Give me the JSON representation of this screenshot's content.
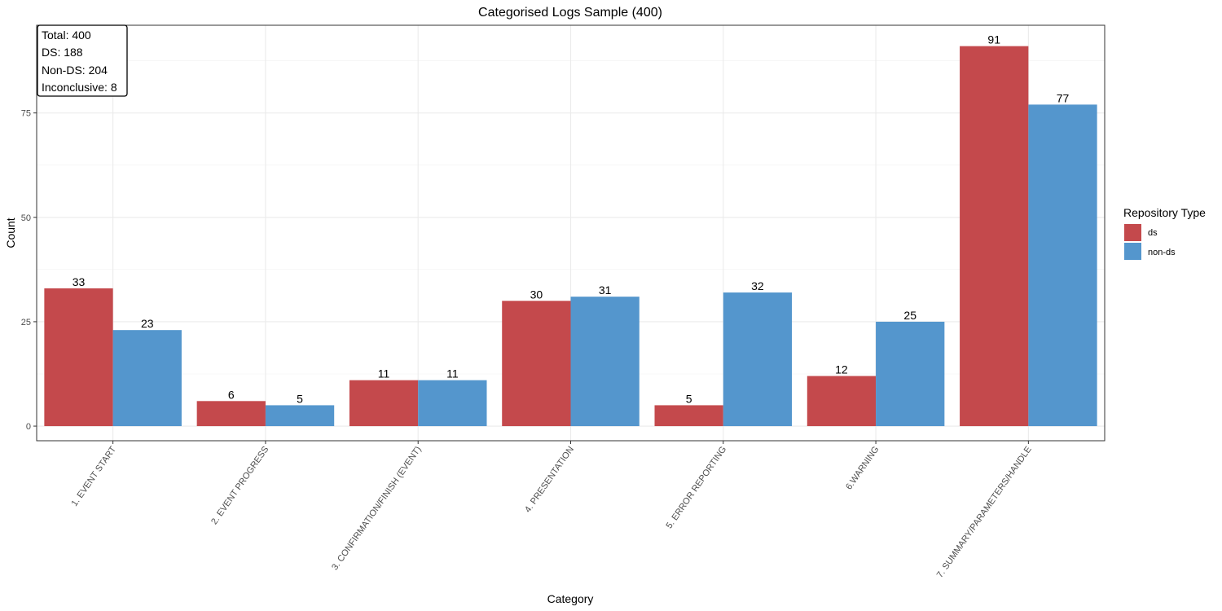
{
  "chart_data": {
    "type": "bar",
    "title": "Categorised Logs Sample (400)",
    "xlabel": "Category",
    "ylabel": "Count",
    "ylim": [
      -3.5,
      96
    ],
    "yticks": [
      0,
      25,
      50,
      75
    ],
    "grid": true,
    "categories": [
      "1. EVENT START",
      "2. EVENT PROGRESS",
      "3. CONFIRMATION/FINISH (EVENT)",
      "4. PRESENTATION",
      "5. ERROR REPORTING",
      "6.WARNING",
      "7. SUMMARY/PARAMETERS/HANDLE"
    ],
    "series": [
      {
        "name": "ds",
        "color": "#c4494c",
        "values": [
          33,
          6,
          11,
          30,
          5,
          12,
          91
        ]
      },
      {
        "name": "non-ds",
        "color": "#5496cd",
        "values": [
          23,
          5,
          11,
          31,
          32,
          25,
          77
        ]
      }
    ],
    "legend": {
      "title": "Repository Type",
      "position": "right"
    },
    "annotation": [
      "Total: 400",
      "DS: 188",
      "Non-DS: 204",
      "Inconclusive: 8"
    ]
  }
}
